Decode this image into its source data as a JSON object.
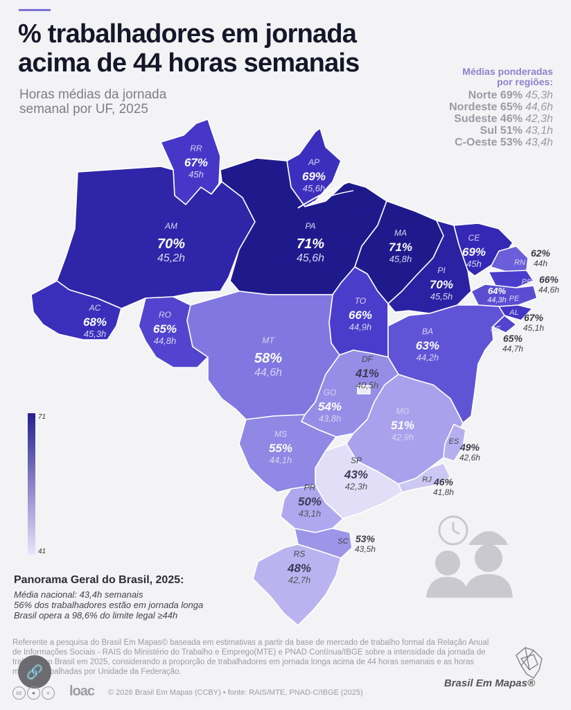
{
  "header": {
    "title_line1": "% trabalhadores em jornada",
    "title_line2": "acima de 44 horas semanais",
    "subtitle_line1": "Horas médias da jornada",
    "subtitle_line2": "semanal por UF, 2025"
  },
  "regions": {
    "heading_line1": "Médias ponderadas",
    "heading_line2": "por regiões:",
    "items": [
      {
        "name": "Norte",
        "pct": "69%",
        "hours": "45,3h"
      },
      {
        "name": "Nordeste",
        "pct": "65%",
        "hours": "44,6h"
      },
      {
        "name": "Sudeste",
        "pct": "46%",
        "hours": "42,3h"
      },
      {
        "name": "Sul",
        "pct": "51%",
        "hours": "43,1h"
      },
      {
        "name": "C-Oeste",
        "pct": "53%",
        "hours": "43,4h"
      }
    ]
  },
  "states": {
    "RR": {
      "uf": "RR",
      "pct": "67%",
      "hours": "45h",
      "color": "#4637c8"
    },
    "AP": {
      "uf": "AP",
      "pct": "69%",
      "hours": "45,6h",
      "color": "#3c2fbd"
    },
    "AM": {
      "uf": "AM",
      "pct": "70%",
      "hours": "45,2h",
      "color": "#2e25a8"
    },
    "PA": {
      "uf": "PA",
      "pct": "71%",
      "hours": "45,6h",
      "color": "#1f1a8c"
    },
    "MA": {
      "uf": "MA",
      "pct": "71%",
      "hours": "45,8h",
      "color": "#1f1a8c"
    },
    "CE": {
      "uf": "CE",
      "pct": "69%",
      "hours": "45h",
      "color": "#3428b4"
    },
    "PI": {
      "uf": "PI",
      "pct": "70%",
      "hours": "45,5h",
      "color": "#2a22a2"
    },
    "RN": {
      "uf": "RN",
      "pct": "62%",
      "hours": "44h",
      "color": "#6a5fd8"
    },
    "PB": {
      "uf": "PB",
      "pct": "66%",
      "hours": "44,6h",
      "color": "#4a3dcc"
    },
    "PE": {
      "uf": "PE",
      "pct": "64%",
      "hours": "44,3h",
      "color": "#5a4dd2"
    },
    "AL": {
      "uf": "AL",
      "pct": "67%",
      "hours": "45,1h",
      "color": "#4436c5"
    },
    "SE": {
      "uf": "SE",
      "pct": "65%",
      "hours": "44,7h",
      "color": "#5244cf"
    },
    "AC": {
      "uf": "AC",
      "pct": "68%",
      "hours": "45,3h",
      "color": "#3a2fba"
    },
    "RO": {
      "uf": "RO",
      "pct": "65%",
      "hours": "44,8h",
      "color": "#5244cf"
    },
    "TO": {
      "uf": "TO",
      "pct": "66%",
      "hours": "44,9h",
      "color": "#4a3dcc"
    },
    "BA": {
      "uf": "BA",
      "pct": "63%",
      "hours": "44,2h",
      "color": "#6054d6"
    },
    "MT": {
      "uf": "MT",
      "pct": "58%",
      "hours": "44,6h",
      "color": "#8177e0"
    },
    "DF": {
      "uf": "DF",
      "pct": "41%",
      "hours": "40,5h",
      "color": "#ece8fb"
    },
    "GO": {
      "uf": "GO",
      "pct": "54%",
      "hours": "43,8h",
      "color": "#968de6"
    },
    "MG": {
      "uf": "MG",
      "pct": "51%",
      "hours": "42,9h",
      "color": "#a9a1ec"
    },
    "ES": {
      "uf": "ES",
      "pct": "49%",
      "hours": "42,6h",
      "color": "#b6afef"
    },
    "MS": {
      "uf": "MS",
      "pct": "55%",
      "hours": "44,1h",
      "color": "#9088e4"
    },
    "SP": {
      "uf": "SP",
      "pct": "43%",
      "hours": "42,3h",
      "color": "#e3def8"
    },
    "RJ": {
      "uf": "RJ",
      "pct": "46%",
      "hours": "41,8h",
      "color": "#cdc7f4"
    },
    "PR": {
      "uf": "PR",
      "pct": "50%",
      "hours": "43,1h",
      "color": "#afa8ee"
    },
    "SC": {
      "uf": "SC",
      "pct": "53%",
      "hours": "43,5h",
      "color": "#9d95e8"
    },
    "RS": {
      "uf": "RS",
      "pct": "48%",
      "hours": "42,7h",
      "color": "#bab3f0"
    }
  },
  "legend": {
    "max": "71",
    "min": "41"
  },
  "panorama": {
    "title": "Panorama Geral do Brasil, 2025:",
    "line1": "Média nacional: 43,4h semanais",
    "line2": "56% dos trabalhadores estão em jornada longa",
    "line3": "Brasil opera a 98,6% do limite legal ≥44h"
  },
  "footnote": "Referente a pesquisa do Brasil Em Mapas© baseada em estimativas a partir da base de mercado de trabalho formal da Relação Anual de Informações Sociais - RAIS do Ministério do Trabalho e Emprego(MTE) e PNAD Contínua/IBGE sobre a intensidade da jornada de trabalho no Brasil em 2025, considerando a proporção de trabalhadores em jornada longa acima de 44 horas semanais e as horas médias trabalhadas por Unidade da Federação.",
  "footer": {
    "loac": "loac",
    "copyright": "© 2026 Brasil Em Mapas (CCBY)  •  fonte: RAIS/MTE, PNAD-C/IBGE (2025)",
    "brand": "Brasil Em Mapas®",
    "share_icon": "link-icon"
  }
}
